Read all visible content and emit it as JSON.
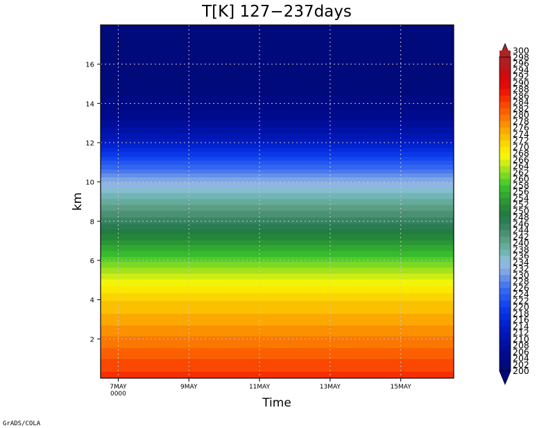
{
  "chart_data": {
    "type": "heatmap",
    "title": "T[K] 127−237days",
    "xlabel": "Time",
    "ylabel": "km",
    "x_ticks": [
      {
        "label": "7MAY",
        "sub": "0000",
        "x": 1.0
      },
      {
        "label": "9MAY",
        "sub": "",
        "x": 3.0
      },
      {
        "label": "11MAY",
        "sub": "",
        "x": 5.0
      },
      {
        "label": "13MAY",
        "sub": "",
        "x": 7.0
      },
      {
        "label": "15MAY",
        "sub": "",
        "x": 9.0
      }
    ],
    "xlim": [
      0.5,
      10.5
    ],
    "y_ticks": [
      2,
      4,
      6,
      8,
      10,
      12,
      14,
      16
    ],
    "ylim": [
      0,
      18
    ],
    "grid": true,
    "colorbar": {
      "min": 200,
      "max": 280,
      "step": 2,
      "colors": [
        "#000a7b",
        "#000a84",
        "#000b8d",
        "#000e9a",
        "#0012a6",
        "#0016b3",
        "#001bc1",
        "#0022cf",
        "#052cdd",
        "#0b38e8",
        "#1547ef",
        "#2556f0",
        "#3366f0",
        "#4a78ee",
        "#6590e9",
        "#7ea6e6",
        "#8fb6e2",
        "#86bdd0",
        "#73b5b5",
        "#66ab9b",
        "#5a9e84",
        "#4b9072",
        "#388562",
        "#2a7d52",
        "#237c40",
        "#26873a",
        "#2b9635",
        "#31a830",
        "#38bb2d",
        "#4fcd28",
        "#7ad922",
        "#a5e21c",
        "#cfed14",
        "#f2f508",
        "#fbe900",
        "#fbd500",
        "#fbc000",
        "#fba900",
        "#fb9000",
        "#fb7800",
        "#fb6000",
        "#fb4800",
        "#f72f00",
        "#ef1800",
        "#e30b06",
        "#d80a0b",
        "#c80e14",
        "#b81a1c",
        "#b01f22",
        "#ae2324"
      ]
    },
    "temperature_profile": {
      "heights_km": [
        0,
        1,
        2,
        3,
        4,
        5,
        6,
        7,
        8,
        9,
        10,
        11,
        12,
        13,
        14,
        15,
        16,
        17,
        18
      ],
      "values_K": [
        285,
        282,
        278.5,
        275,
        271.8,
        266.5,
        259.5,
        252.5,
        245.2,
        239.2,
        232.2,
        223,
        213.5,
        206.5,
        202.8,
        200.8,
        199.8,
        199.2,
        199
      ]
    },
    "credit": "GrADS/COLA"
  }
}
